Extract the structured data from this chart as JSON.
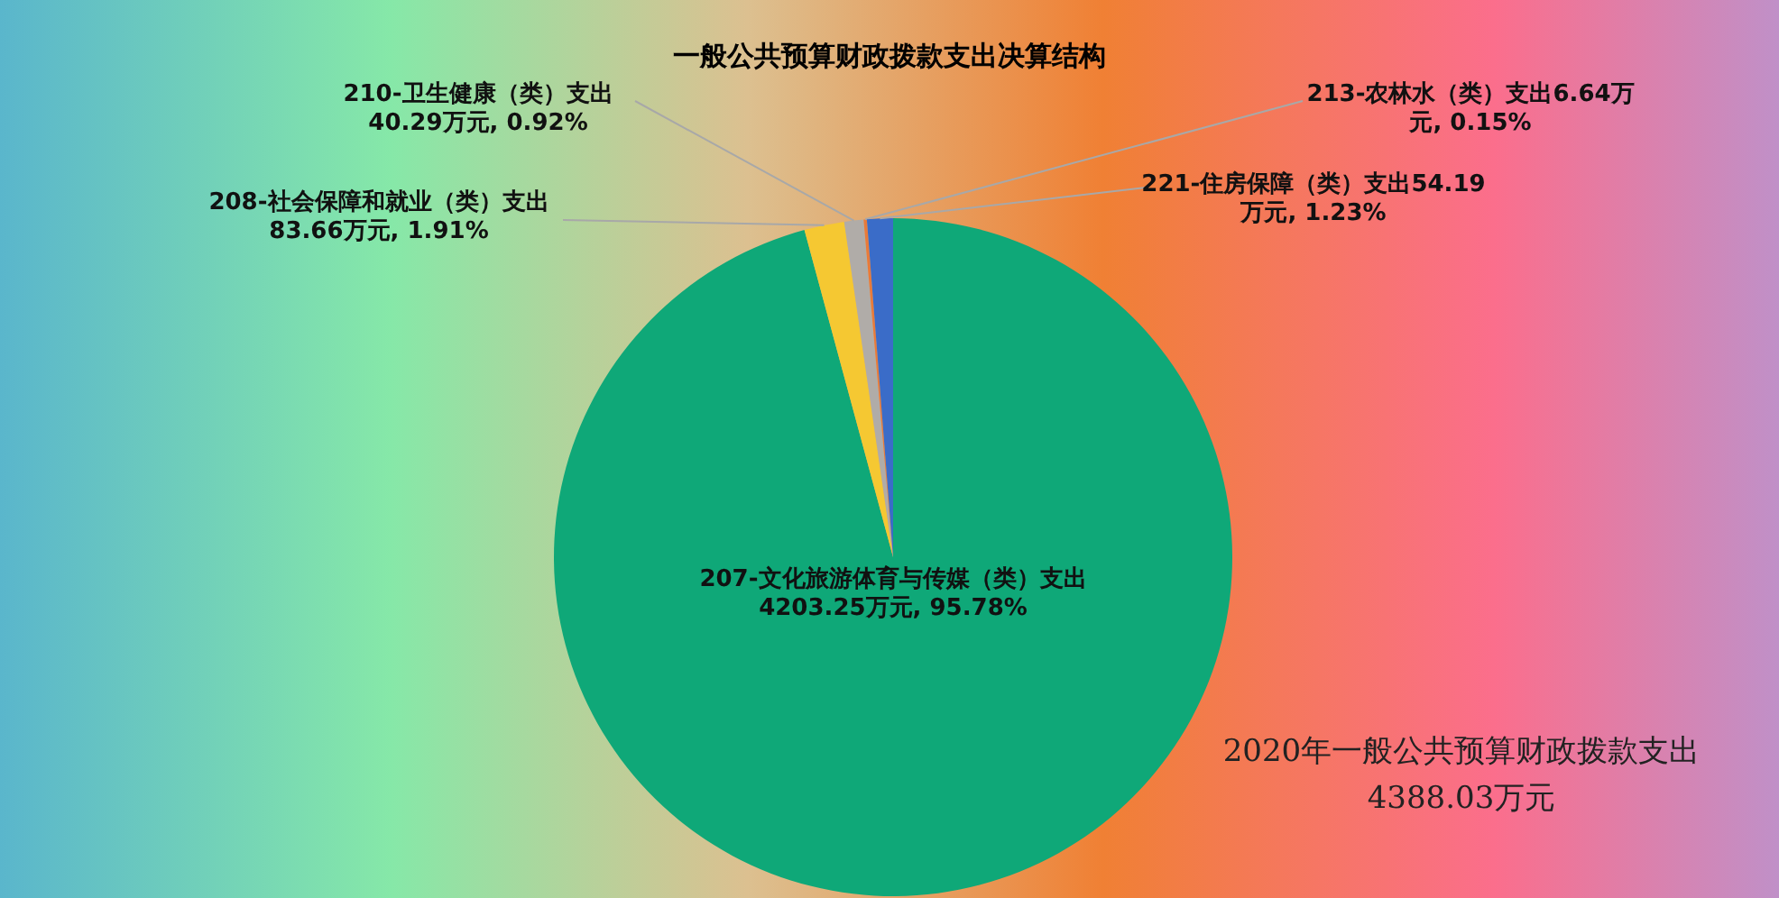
{
  "chart_data": {
    "type": "pie",
    "title": "一般公共预算财政拨款支出决算结构",
    "categories": [
      "207-文化旅游体育与传媒（类）支出",
      "208-社会保障和就业（类）支出",
      "210-卫生健康（类）支出",
      "213-农林水（类）支出",
      "221-住房保障（类）支出"
    ],
    "values": [
      4203.25,
      83.66,
      40.29,
      6.64,
      54.19
    ],
    "value_labels": [
      "4203.25万元, 95.78%",
      "83.66万元, 1.91%",
      "40.29万元, 0.92%",
      "6.64万元, 0.15%",
      "54.19万元, 1.23%"
    ],
    "colors": [
      "#0fa878",
      "#f5c832",
      "#b0aca8",
      "#e87a3a",
      "#3a6cc8"
    ],
    "annotations": [
      "2020年一般公共预算财政拨款支出4388.03万元"
    ]
  }
}
